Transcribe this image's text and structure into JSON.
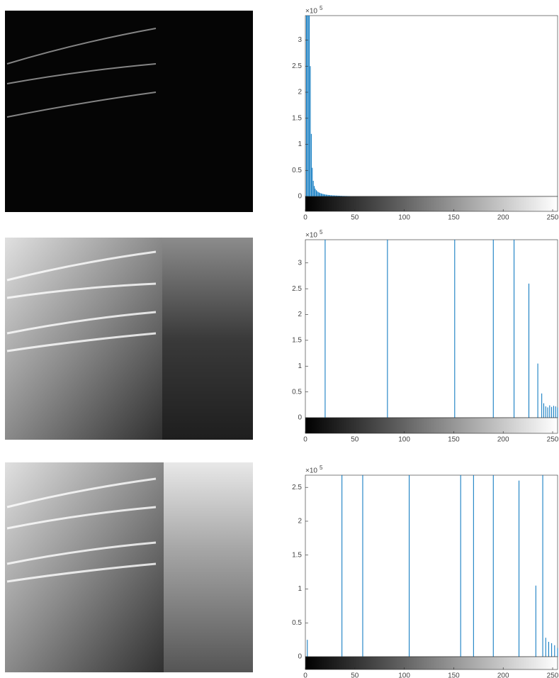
{
  "chart_data": [
    {
      "type": "bar",
      "y_exponent": {
        "base": "×10",
        "power": "5"
      },
      "color": "#0072bd",
      "x": [
        1,
        2,
        3,
        4,
        5,
        6,
        7,
        8,
        9,
        10,
        11,
        12,
        13,
        14,
        15,
        16,
        17,
        18,
        19,
        20,
        21,
        22,
        23,
        24,
        25,
        26,
        27,
        28,
        29,
        30,
        31,
        32,
        33,
        34,
        35,
        36,
        37,
        38,
        39,
        40,
        41,
        42,
        43,
        44,
        45
      ],
      "values": [
        347000,
        347000,
        347000,
        347000,
        250000,
        120000,
        55000,
        30000,
        20000,
        15000,
        12000,
        10000,
        8500,
        7500,
        6500,
        5800,
        5200,
        4700,
        4200,
        3800,
        3500,
        3200,
        2900,
        2700,
        2500,
        2300,
        2100,
        2000,
        1900,
        1800,
        1700,
        1600,
        1500,
        1400,
        1300,
        1200,
        1100,
        1000,
        950,
        900,
        850,
        800,
        750,
        700,
        650
      ],
      "xlim": [
        0,
        255
      ],
      "xticks": [
        0,
        50,
        100,
        150,
        200,
        250
      ],
      "ylim": [
        0,
        347000
      ],
      "yticks": [
        0,
        {
          "value": 50000,
          "label": "0.5"
        },
        {
          "value": 100000,
          "label": "1"
        },
        {
          "value": 150000,
          "label": "1.5"
        },
        {
          "value": 200000,
          "label": "2"
        },
        {
          "value": 250000,
          "label": "2.5"
        },
        {
          "value": 300000,
          "label": "3"
        }
      ]
    },
    {
      "type": "bar",
      "y_exponent": {
        "base": "×10",
        "power": "5"
      },
      "color": "#0072bd",
      "x": [
        20,
        83,
        151,
        190,
        211,
        226,
        235,
        239,
        241,
        243,
        245,
        247,
        249,
        251,
        253,
        255
      ],
      "values": [
        345000,
        345000,
        345000,
        345000,
        345000,
        260000,
        105000,
        47000,
        28000,
        22000,
        20000,
        24000,
        21000,
        23000,
        22000,
        20000
      ],
      "xlim": [
        0,
        255
      ],
      "xticks": [
        0,
        50,
        100,
        150,
        200,
        250
      ],
      "ylim": [
        0,
        345000
      ],
      "yticks": [
        0,
        {
          "value": 50000,
          "label": "0.5"
        },
        {
          "value": 100000,
          "label": "1"
        },
        {
          "value": 150000,
          "label": "1.5"
        },
        {
          "value": 200000,
          "label": "2"
        },
        {
          "value": 250000,
          "label": "2.5"
        },
        {
          "value": 300000,
          "label": "3"
        }
      ]
    },
    {
      "type": "bar",
      "y_exponent": {
        "base": "×10",
        "power": "5"
      },
      "color": "#0072bd",
      "x": [
        2,
        37,
        58,
        105,
        157,
        170,
        190,
        216,
        233,
        240,
        243,
        246,
        249,
        252,
        255
      ],
      "values": [
        25000,
        268000,
        268000,
        268000,
        268000,
        268000,
        268000,
        260000,
        105000,
        268000,
        28000,
        22000,
        20000,
        17000,
        13000
      ],
      "xlim": [
        0,
        255
      ],
      "xticks": [
        0,
        50,
        100,
        150,
        200,
        250
      ],
      "ylim": [
        0,
        268000
      ],
      "yticks": [
        0,
        {
          "value": 50000,
          "label": "0.5"
        },
        {
          "value": 100000,
          "label": "1"
        },
        {
          "value": 150000,
          "label": "1.5"
        },
        {
          "value": 200000,
          "label": "2"
        },
        {
          "value": 250000,
          "label": "2.5"
        }
      ]
    }
  ]
}
